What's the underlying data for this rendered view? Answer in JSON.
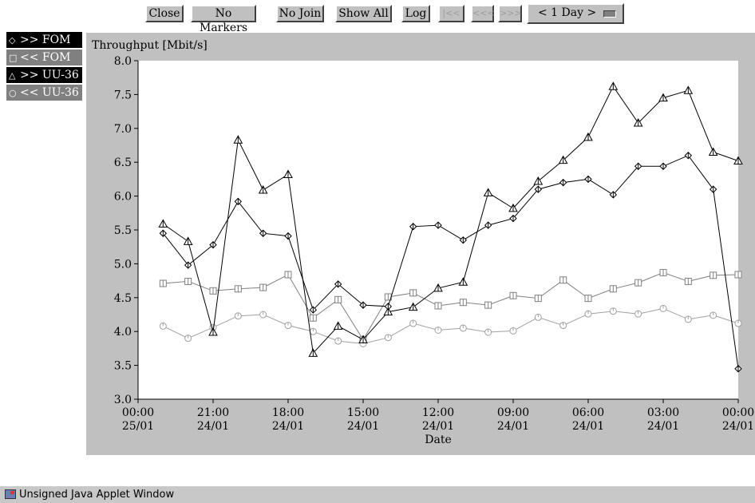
{
  "toolbar": {
    "close": "Close",
    "no_markers": "No Markers",
    "no_join": "No Join",
    "show_all": "Show All",
    "log": "Log",
    "first": "|<<",
    "prev": "<<<",
    "next": ">>>",
    "range": "< 1 Day >"
  },
  "legend": [
    {
      "label": ">> FOM",
      "icon": "◇",
      "bg": "#000000"
    },
    {
      "label": "<< FOM",
      "icon": "□",
      "bg": "#808080"
    },
    {
      "label": ">> UU-36",
      "icon": "△",
      "bg": "#000000"
    },
    {
      "label": "<< UU-36",
      "icon": "○",
      "bg": "#808080"
    }
  ],
  "chart_data": {
    "type": "line",
    "ylabel": "Throughput [Mbit/s]",
    "xlabel": "Date",
    "ylim": [
      3.0,
      8.0
    ],
    "yticks": [
      "3.0",
      "3.5",
      "4.0",
      "4.5",
      "5.0",
      "5.5",
      "6.0",
      "6.5",
      "7.0",
      "7.5",
      "8.0"
    ],
    "xlim": [
      0,
      24
    ],
    "xticks": [
      {
        "x": 0,
        "time": "00:00",
        "date": "25/01"
      },
      {
        "x": 3,
        "time": "21:00",
        "date": "24/01"
      },
      {
        "x": 6,
        "time": "18:00",
        "date": "24/01"
      },
      {
        "x": 9,
        "time": "15:00",
        "date": "24/01"
      },
      {
        "x": 12,
        "time": "12:00",
        "date": "24/01"
      },
      {
        "x": 15,
        "time": "09:00",
        "date": "24/01"
      },
      {
        "x": 18,
        "time": "06:00",
        "date": "24/01"
      },
      {
        "x": 21,
        "time": "03:00",
        "date": "24/01"
      },
      {
        "x": 24,
        "time": "00:00",
        "date": "24/01"
      }
    ],
    "x": [
      1,
      2,
      3,
      4,
      5,
      6,
      7,
      8,
      9,
      10,
      11,
      12,
      13,
      14,
      15,
      16,
      17,
      18,
      19,
      20,
      21,
      22,
      23,
      24
    ],
    "series": [
      {
        "name": ">> FOM",
        "color": "#000000",
        "marker": "diamond",
        "values": [
          5.45,
          4.98,
          5.28,
          5.92,
          5.45,
          5.41,
          4.32,
          4.7,
          4.39,
          4.37,
          5.55,
          5.57,
          5.35,
          5.57,
          5.67,
          6.1,
          6.2,
          6.25,
          6.02,
          6.44,
          6.44,
          6.6,
          6.1,
          3.45
        ]
      },
      {
        "name": "<< FOM",
        "color": "#808080",
        "marker": "square",
        "values": [
          4.71,
          4.74,
          4.6,
          4.63,
          4.65,
          4.84,
          4.2,
          4.47,
          3.88,
          4.51,
          4.57,
          4.38,
          4.43,
          4.39,
          4.53,
          4.49,
          4.76,
          4.49,
          4.63,
          4.72,
          4.87,
          4.74,
          4.83,
          4.84
        ]
      },
      {
        "name": ">> UU-36",
        "color": "#000000",
        "marker": "triangle",
        "values": [
          5.59,
          5.33,
          3.99,
          6.83,
          6.09,
          6.32,
          3.68,
          4.08,
          3.88,
          4.29,
          4.36,
          4.64,
          4.73,
          6.05,
          5.82,
          6.22,
          6.53,
          6.87,
          7.62,
          7.08,
          7.45,
          7.56,
          6.65,
          6.52
        ]
      },
      {
        "name": "<< UU-36",
        "color": "#a0a0a0",
        "marker": "circle",
        "values": [
          4.08,
          3.9,
          4.06,
          4.23,
          4.25,
          4.09,
          4.0,
          3.86,
          3.82,
          3.91,
          4.12,
          4.02,
          4.05,
          3.99,
          4.01,
          4.21,
          4.09,
          4.26,
          4.3,
          4.26,
          4.34,
          4.18,
          4.24,
          4.12
        ]
      }
    ]
  },
  "status": {
    "text": "Unsigned Java Applet Window"
  }
}
